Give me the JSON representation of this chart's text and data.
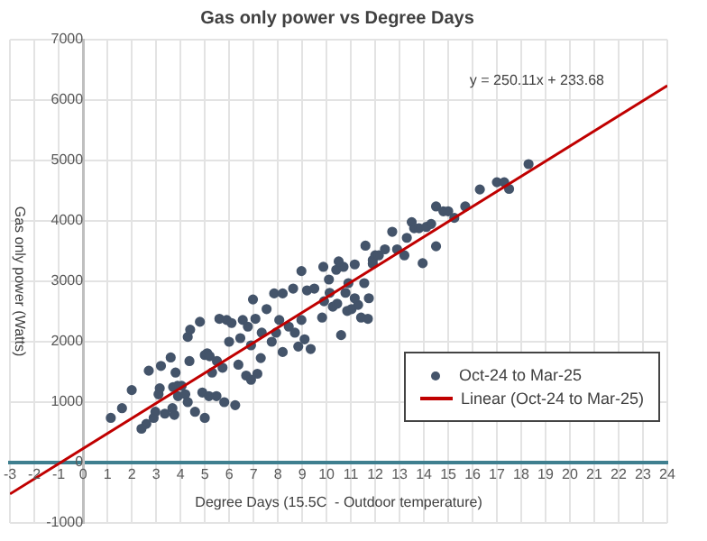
{
  "chart_data": {
    "type": "scatter",
    "title": "Gas only power vs Degree Days",
    "xlabel": "Degree Days (15.5C  - Outdoor temperature)",
    "ylabel": "Gas only power (Watts)",
    "annotations": [
      "y = 250.11x + 233.68"
    ],
    "xlim": [
      -3,
      24
    ],
    "xticks": [
      -3,
      -2,
      -1,
      0,
      1,
      2,
      3,
      4,
      5,
      6,
      7,
      8,
      9,
      10,
      11,
      12,
      13,
      14,
      15,
      16,
      17,
      18,
      19,
      20,
      21,
      22,
      23,
      24
    ],
    "ylim": [
      -1000,
      7000
    ],
    "yticks": [
      -1000,
      0,
      1000,
      2000,
      3000,
      4000,
      5000,
      6000,
      7000
    ],
    "grid": true,
    "legend": "bottom right",
    "marker": "circle",
    "series": [
      {
        "name": "Oct-24 to Mar-25",
        "color": "#44546a",
        "x": [
          1.14,
          1.6,
          2.0,
          2.7,
          2.4,
          2.6,
          2.9,
          3.1,
          3.15,
          2.97,
          3.2,
          3.6,
          3.36,
          3.67,
          3.75,
          3.8,
          3.7,
          3.88,
          4.05,
          3.9,
          4.2,
          4.3,
          4.4,
          4.37,
          4.3,
          4.6,
          4.8,
          5.0,
          5.1,
          5.2,
          4.9,
          5.0,
          5.17,
          5.48,
          5.3,
          5.5,
          5.6,
          5.73,
          5.8,
          5.9,
          6.0,
          6.1,
          6.25,
          6.38,
          6.46,
          6.56,
          6.7,
          6.77,
          6.9,
          6.98,
          6.9,
          7.08,
          7.16,
          7.3,
          7.34,
          7.54,
          7.75,
          7.85,
          7.93,
          8.06,
          8.2,
          8.2,
          8.45,
          8.63,
          8.7,
          8.84,
          8.97,
          8.97,
          9.1,
          9.2,
          9.35,
          9.5,
          9.82,
          9.87,
          9.9,
          10.1,
          10.13,
          10.26,
          10.4,
          10.44,
          10.6,
          10.7,
          10.78,
          10.85,
          10.9,
          11.03,
          11.16,
          11.3,
          11.42,
          11.55,
          11.7,
          11.74,
          11.9,
          10.5,
          11.16,
          11.6,
          11.9,
          12.0,
          12.15,
          12.4,
          12.7,
          12.9,
          13.2,
          13.3,
          13.5,
          13.6,
          13.8,
          13.95,
          14.1,
          14.3,
          14.5,
          14.5,
          14.8,
          15.0,
          15.25,
          15.7,
          16.3,
          17.0,
          17.3,
          17.5,
          18.3
        ],
        "values": [
          740,
          900,
          1200,
          1520,
          560,
          640,
          740,
          1130,
          1230,
          840,
          1600,
          1740,
          810,
          900,
          790,
          1490,
          1250,
          1270,
          1270,
          1100,
          1130,
          2080,
          2200,
          1680,
          1000,
          840,
          2330,
          1780,
          1810,
          1760,
          1160,
          740,
          1100,
          1100,
          1490,
          1680,
          2380,
          1570,
          1000,
          2360,
          2000,
          2310,
          950,
          1620,
          2060,
          2360,
          1440,
          2250,
          1940,
          2700,
          1370,
          2380,
          1470,
          1730,
          2150,
          2540,
          2000,
          2800,
          2150,
          2360,
          2800,
          1830,
          2250,
          2880,
          2150,
          1920,
          3170,
          2360,
          2040,
          2850,
          1880,
          2880,
          2400,
          3240,
          2670,
          3030,
          2810,
          2580,
          3190,
          2630,
          2110,
          3240,
          2810,
          2510,
          2970,
          2540,
          2720,
          2610,
          2400,
          2970,
          2380,
          2720,
          3290,
          3330,
          3280,
          3590,
          3350,
          3430,
          3430,
          3530,
          3820,
          3530,
          3430,
          3720,
          3980,
          3880,
          3880,
          3300,
          3900,
          3950,
          3580,
          4240,
          4160,
          4160,
          4050,
          4240,
          4520,
          4640,
          4640,
          4530,
          4940
        ]
      },
      {
        "name": "Linear (Oct-24 to Mar-25)",
        "color": "#c00000",
        "type": "line",
        "marker": "none",
        "x": [
          -3,
          24
        ],
        "values": [
          -520,
          6240
        ]
      }
    ]
  }
}
